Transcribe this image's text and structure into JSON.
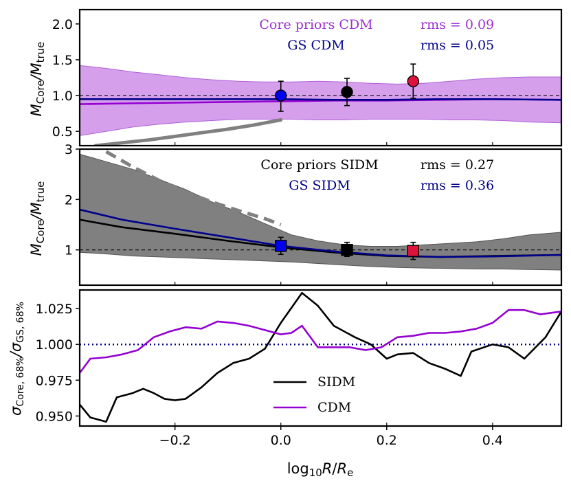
{
  "chart_data": [
    {
      "panel": "top",
      "type": "line",
      "ylabel": "M_Core/M_true",
      "ylim": [
        0.3,
        2.2
      ],
      "yticks": [
        "0.5",
        "1.0",
        "1.5",
        "2.0"
      ],
      "xlim": [
        -0.38,
        0.53
      ],
      "reference_line": 1.0,
      "annotations": [
        {
          "label": "Core priors CDM",
          "rms": "rms = 0.09",
          "color": "#9b30d0"
        },
        {
          "label": "GS CDM",
          "rms": "rms = 0.05",
          "color": "#00008b"
        }
      ],
      "band": {
        "name": "Core priors CDM 68% band",
        "color": "#c77fe6",
        "x": [
          -0.38,
          -0.33,
          -0.28,
          -0.23,
          -0.18,
          -0.13,
          -0.08,
          -0.03,
          0.02,
          0.07,
          0.12,
          0.17,
          0.22,
          0.27,
          0.32,
          0.37,
          0.42,
          0.47,
          0.53
        ],
        "upper": [
          1.42,
          1.38,
          1.33,
          1.29,
          1.25,
          1.22,
          1.2,
          1.19,
          1.19,
          1.2,
          1.19,
          1.17,
          1.16,
          1.17,
          1.2,
          1.23,
          1.25,
          1.26,
          1.26
        ],
        "lower": [
          0.44,
          0.5,
          0.56,
          0.6,
          0.63,
          0.65,
          0.67,
          0.67,
          0.67,
          0.66,
          0.66,
          0.67,
          0.67,
          0.67,
          0.66,
          0.66,
          0.65,
          0.63,
          0.62
        ]
      },
      "series": [
        {
          "name": "Core priors CDM",
          "color": "#9400d3",
          "x": [
            -0.38,
            -0.3,
            -0.2,
            -0.1,
            0.0,
            0.1,
            0.2,
            0.3,
            0.4,
            0.53
          ],
          "values": [
            0.88,
            0.89,
            0.9,
            0.91,
            0.92,
            0.93,
            0.93,
            0.94,
            0.95,
            0.94
          ]
        },
        {
          "name": "GS CDM",
          "color": "#00008b",
          "x": [
            -0.38,
            -0.3,
            -0.2,
            -0.1,
            0.0,
            0.1,
            0.2,
            0.3,
            0.4,
            0.53
          ],
          "values": [
            0.95,
            0.95,
            0.95,
            0.95,
            0.95,
            0.94,
            0.94,
            0.95,
            0.95,
            0.94
          ]
        },
        {
          "name": "Reference curve CDM",
          "color": "#808080",
          "style": "solid",
          "x": [
            -0.35,
            -0.3,
            -0.25,
            -0.2,
            -0.15,
            -0.1,
            -0.05,
            0.0
          ],
          "values": [
            0.3,
            0.34,
            0.38,
            0.43,
            0.48,
            0.53,
            0.59,
            0.66
          ]
        }
      ],
      "points": [
        {
          "x": 0.0,
          "y": 1.0,
          "yerr_low": 0.22,
          "yerr_high": 0.2,
          "color": "#0000ee",
          "marker": "circle"
        },
        {
          "x": 0.125,
          "y": 1.05,
          "yerr_low": 0.19,
          "yerr_high": 0.19,
          "color": "#000000",
          "marker": "circle"
        },
        {
          "x": 0.25,
          "y": 1.2,
          "yerr_low": 0.24,
          "yerr_high": 0.24,
          "color": "#dc143c",
          "marker": "circle"
        }
      ]
    },
    {
      "panel": "middle",
      "type": "line",
      "ylabel": "M_Core/M_true",
      "ylim": [
        0.3,
        3.0
      ],
      "yticks": [
        "1",
        "2",
        "3"
      ],
      "xlim": [
        -0.38,
        0.53
      ],
      "reference_line": 1.0,
      "annotations": [
        {
          "label": "Core priors SIDM",
          "rms": "rms = 0.27",
          "color": "#000000"
        },
        {
          "label": "GS SIDM",
          "rms": "rms = 0.36",
          "color": "#00008b"
        }
      ],
      "band": {
        "name": "Core priors SIDM 68% band",
        "color": "#808080",
        "x": [
          -0.38,
          -0.33,
          -0.28,
          -0.23,
          -0.18,
          -0.13,
          -0.08,
          -0.03,
          0.02,
          0.07,
          0.12,
          0.17,
          0.22,
          0.27,
          0.32,
          0.37,
          0.42,
          0.47,
          0.53
        ],
        "upper": [
          2.9,
          2.75,
          2.6,
          2.4,
          2.2,
          1.95,
          1.75,
          1.52,
          1.3,
          1.18,
          1.1,
          1.07,
          1.07,
          1.1,
          1.13,
          1.16,
          1.22,
          1.3,
          1.35
        ],
        "lower": [
          0.95,
          0.92,
          0.88,
          0.86,
          0.84,
          0.82,
          0.8,
          0.78,
          0.76,
          0.73,
          0.7,
          0.67,
          0.65,
          0.64,
          0.63,
          0.62,
          0.62,
          0.61,
          0.6
        ]
      },
      "series": [
        {
          "name": "Core priors SIDM",
          "color": "#000000",
          "x": [
            -0.38,
            -0.3,
            -0.2,
            -0.1,
            0.0,
            0.1,
            0.2,
            0.3,
            0.4,
            0.53
          ],
          "values": [
            1.6,
            1.45,
            1.32,
            1.18,
            1.05,
            0.95,
            0.88,
            0.86,
            0.88,
            0.9
          ]
        },
        {
          "name": "GS SIDM",
          "color": "#00008b",
          "x": [
            -0.38,
            -0.3,
            -0.2,
            -0.1,
            0.0,
            0.1,
            0.2,
            0.3,
            0.4,
            0.53
          ],
          "values": [
            1.8,
            1.6,
            1.42,
            1.25,
            1.08,
            0.97,
            0.89,
            0.86,
            0.87,
            0.9
          ]
        },
        {
          "name": "Reference curve SIDM",
          "color": "#808080",
          "style": "dashed",
          "x": [
            -0.33,
            -0.28,
            -0.23,
            -0.18,
            -0.13,
            -0.08,
            -0.03,
            0.0
          ],
          "values": [
            2.95,
            2.65,
            2.38,
            2.15,
            1.95,
            1.78,
            1.62,
            1.5
          ]
        }
      ],
      "points": [
        {
          "x": 0.0,
          "y": 1.08,
          "yerr_low": 0.17,
          "yerr_high": 0.17,
          "color": "#0000ee",
          "marker": "square"
        },
        {
          "x": 0.125,
          "y": 1.0,
          "yerr_low": 0.13,
          "yerr_high": 0.15,
          "color": "#000000",
          "marker": "square"
        },
        {
          "x": 0.25,
          "y": 0.98,
          "yerr_low": 0.17,
          "yerr_high": 0.17,
          "color": "#dc143c",
          "marker": "square"
        }
      ]
    },
    {
      "panel": "bottom",
      "type": "line",
      "ylabel": "σ_Core,68%/σ_GS,68%",
      "xlabel": "log10 R/R_e",
      "ylim": [
        0.943,
        1.038
      ],
      "yticks": [
        "0.950",
        "0.975",
        "1.000",
        "1.025"
      ],
      "xlim": [
        -0.38,
        0.53
      ],
      "xticks": [
        "−0.2",
        "0.0",
        "0.2",
        "0.4"
      ],
      "reference_line": 1.0,
      "legend": [
        {
          "label": "SIDM",
          "color": "#000000"
        },
        {
          "label": "CDM",
          "color": "#9400d3"
        }
      ],
      "series": [
        {
          "name": "SIDM",
          "color": "#000000",
          "x": [
            -0.38,
            -0.36,
            -0.33,
            -0.31,
            -0.28,
            -0.26,
            -0.24,
            -0.22,
            -0.2,
            -0.18,
            -0.15,
            -0.12,
            -0.09,
            -0.06,
            -0.03,
            0.0,
            0.04,
            0.07,
            0.1,
            0.14,
            0.17,
            0.2,
            0.22,
            0.25,
            0.28,
            0.31,
            0.34,
            0.36,
            0.4,
            0.43,
            0.46,
            0.5,
            0.53
          ],
          "values": [
            0.958,
            0.949,
            0.946,
            0.963,
            0.966,
            0.969,
            0.966,
            0.962,
            0.961,
            0.962,
            0.97,
            0.98,
            0.987,
            0.99,
            0.997,
            1.015,
            1.036,
            1.027,
            1.013,
            1.005,
            1.0,
            0.99,
            0.993,
            0.994,
            0.987,
            0.983,
            0.978,
            0.995,
            1.0,
            0.998,
            0.99,
            1.005,
            1.023
          ]
        },
        {
          "name": "CDM",
          "color": "#9400d3",
          "x": [
            -0.38,
            -0.36,
            -0.33,
            -0.3,
            -0.27,
            -0.24,
            -0.21,
            -0.18,
            -0.15,
            -0.12,
            -0.09,
            -0.06,
            -0.03,
            0.0,
            0.02,
            0.04,
            0.07,
            0.1,
            0.13,
            0.16,
            0.19,
            0.22,
            0.25,
            0.28,
            0.31,
            0.34,
            0.37,
            0.4,
            0.43,
            0.46,
            0.49,
            0.53
          ],
          "values": [
            0.98,
            0.99,
            0.991,
            0.993,
            0.996,
            1.005,
            1.009,
            1.012,
            1.011,
            1.016,
            1.015,
            1.013,
            1.01,
            1.007,
            1.008,
            1.013,
            0.998,
            0.998,
            0.998,
            0.996,
            0.998,
            1.005,
            1.006,
            1.008,
            1.008,
            1.009,
            1.011,
            1.015,
            1.024,
            1.024,
            1.021,
            1.023
          ]
        }
      ]
    }
  ]
}
